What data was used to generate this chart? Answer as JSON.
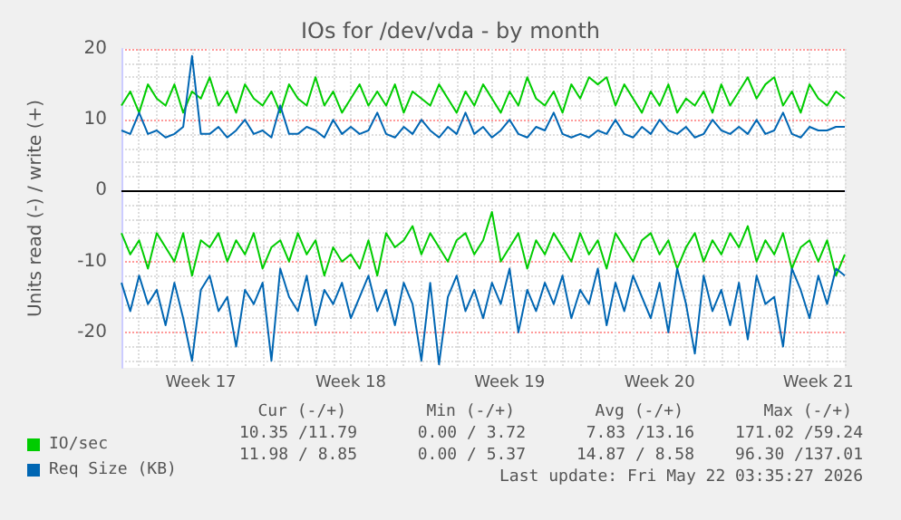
{
  "chart_data": {
    "type": "line",
    "title": "IOs for /dev/vda - by month",
    "ylabel": "Units read (-) / write (+)",
    "categories": [
      null,
      null,
      null,
      null,
      null,
      null,
      null,
      null,
      null,
      "Week 17",
      null,
      null,
      null,
      null,
      null,
      null,
      null,
      null,
      null,
      null,
      null,
      null,
      null,
      null,
      null,
      null,
      "Week 18",
      null,
      null,
      null,
      null,
      null,
      null,
      null,
      null,
      null,
      null,
      null,
      null,
      null,
      null,
      null,
      null,
      null,
      "Week 19",
      null,
      null,
      null,
      null,
      null,
      null,
      null,
      null,
      null,
      null,
      null,
      null,
      null,
      null,
      null,
      null,
      "Week 20",
      null,
      null,
      null,
      null,
      null,
      null,
      null,
      null,
      null,
      null,
      null,
      null,
      null,
      null,
      null,
      null,
      null,
      "Week 21",
      null,
      null,
      null
    ],
    "series": [
      {
        "name": "IO/sec",
        "color": "#00cc00",
        "values": [
          12,
          14,
          11,
          15,
          13,
          12,
          15,
          11,
          14,
          13,
          16,
          12,
          14,
          11,
          15,
          13,
          12,
          14,
          11,
          15,
          13,
          12,
          16,
          12,
          14,
          11,
          13,
          15,
          12,
          14,
          12,
          15,
          11,
          14,
          13,
          12,
          15,
          13,
          11,
          14,
          12,
          15,
          13,
          11,
          14,
          12,
          16,
          13,
          12,
          14,
          11,
          15,
          13,
          16,
          15,
          16,
          12,
          15,
          13,
          11,
          14,
          12,
          15,
          11,
          13,
          12,
          14,
          11,
          15,
          12,
          14,
          16,
          13,
          15,
          16,
          12,
          14,
          11,
          15,
          13,
          12,
          14,
          13
        ]
      },
      {
        "color": "#00cc00",
        "values": [
          -6,
          -9,
          -7,
          -11,
          -6,
          -8,
          -10,
          -6,
          -12,
          -7,
          -8,
          -6,
          -10,
          -7,
          -9,
          -6,
          -11,
          -8,
          -7,
          -10,
          -6,
          -9,
          -7,
          -12,
          -8,
          -10,
          -9,
          -11,
          -7,
          -12,
          -6,
          -8,
          -7,
          -5,
          -9,
          -6,
          -8,
          -10,
          -7,
          -6,
          -9,
          -7,
          -3,
          -10,
          -8,
          -6,
          -11,
          -7,
          -9,
          -6,
          -8,
          -10,
          -6,
          -9,
          -7,
          -11,
          -6,
          -8,
          -10,
          -7,
          -6,
          -9,
          -7,
          -11,
          -8,
          -6,
          -10,
          -7,
          -9,
          -6,
          -8,
          -5,
          -10,
          -7,
          -9,
          -6,
          -11,
          -8,
          -7,
          -10,
          -7,
          -12,
          -9
        ]
      },
      {
        "name": "Req Size (KB)",
        "color": "#0066b3",
        "values": [
          8.5,
          8,
          11,
          8,
          8.5,
          7.5,
          8,
          9,
          19,
          8,
          8,
          9,
          7.5,
          8.5,
          10,
          8,
          8.5,
          7.5,
          12,
          8,
          8,
          9,
          8.5,
          7.5,
          10,
          8,
          9,
          8,
          8.5,
          11,
          8,
          7.5,
          9,
          8,
          10,
          8.5,
          7.5,
          9,
          8,
          11,
          8,
          9,
          7.5,
          8.5,
          10,
          8,
          7.5,
          9,
          8.5,
          11,
          8,
          7.5,
          8,
          7.5,
          8.5,
          8,
          10,
          8,
          7.5,
          9,
          8,
          10,
          8.5,
          8,
          9,
          7.5,
          8,
          10,
          8.5,
          8,
          9,
          8,
          10,
          8,
          8.5,
          11,
          8,
          7.5,
          9,
          8.5,
          8.5,
          9,
          9
        ]
      },
      {
        "color": "#0066b3",
        "values": [
          -13,
          -17,
          -12,
          -16,
          -14,
          -19,
          -13,
          -18,
          -24,
          -14,
          -12,
          -17,
          -15,
          -22,
          -14,
          -16,
          -13,
          -24,
          -11,
          -15,
          -17,
          -12,
          -19,
          -14,
          -16,
          -13,
          -18,
          -15,
          -12,
          -17,
          -14,
          -19,
          -13,
          -16,
          -24,
          -13,
          -24.5,
          -15,
          -12,
          -17,
          -14,
          -18,
          -13,
          -16,
          -11,
          -20,
          -14,
          -17,
          -13,
          -16,
          -12,
          -18,
          -14,
          -16,
          -11,
          -19,
          -13,
          -17,
          -12,
          -15,
          -18,
          -13,
          -20,
          -11,
          -16,
          -23,
          -12,
          -17,
          -14,
          -19,
          -13,
          -21,
          -12,
          -16,
          -15,
          -22,
          -11,
          -14,
          -18,
          -12,
          -16,
          -11,
          -12
        ]
      }
    ],
    "ylim": [
      -25,
      20
    ],
    "yticks": [
      -20,
      -10,
      0,
      10,
      20
    ],
    "ref_lines": [
      {
        "axis": "y",
        "value": 0,
        "color": "#000000"
      }
    ],
    "grid": true,
    "legend": "bottom left",
    "marker": "none",
    "line_style": "solid",
    "annotations": [
      "Cur (-/+)",
      "Min (-/+)",
      "Avg (-/+)",
      "Max (-/+)",
      "10.35 /11.79",
      "0.00 / 3.72",
      "7.83 /13.16",
      "171.02 /59.24",
      "11.98 / 8.85",
      "0.00 / 5.37",
      "14.87 / 8.58",
      "96.30 /137.01",
      "Last update: Fri May 22 03:35:27 2026"
    ]
  }
}
